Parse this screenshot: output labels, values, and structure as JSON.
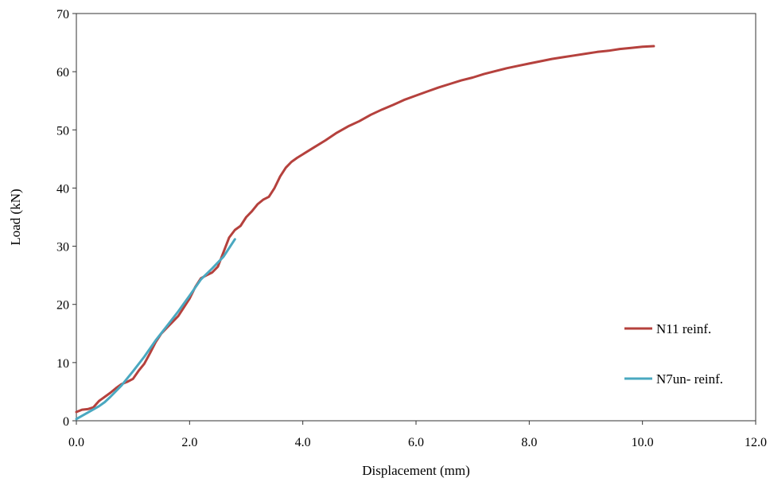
{
  "chart_data": {
    "type": "line",
    "title": "",
    "xlabel": "Displacement (mm)",
    "ylabel": "Load (kN)",
    "xlim": [
      0,
      12
    ],
    "ylim": [
      0,
      70
    ],
    "x_ticks": [
      0,
      2,
      4,
      6,
      8,
      10,
      12
    ],
    "x_tick_labels": [
      "0.0",
      "2.0",
      "4.0",
      "6.0",
      "8.0",
      "10.0",
      "12.0"
    ],
    "y_ticks": [
      0,
      10,
      20,
      30,
      40,
      50,
      60,
      70
    ],
    "y_tick_labels": [
      "0",
      "10",
      "20",
      "30",
      "40",
      "50",
      "60",
      "70"
    ],
    "grid": false,
    "legend_position": "bottom-right",
    "series": [
      {
        "name": "N11 reinf.",
        "color": "#b5413d",
        "points": [
          [
            0.0,
            1.5
          ],
          [
            0.1,
            1.9
          ],
          [
            0.2,
            2.0
          ],
          [
            0.3,
            2.3
          ],
          [
            0.4,
            3.4
          ],
          [
            0.5,
            4.1
          ],
          [
            0.6,
            4.8
          ],
          [
            0.7,
            5.6
          ],
          [
            0.8,
            6.3
          ],
          [
            0.9,
            6.7
          ],
          [
            1.0,
            7.2
          ],
          [
            1.1,
            8.6
          ],
          [
            1.2,
            9.8
          ],
          [
            1.3,
            11.6
          ],
          [
            1.4,
            13.5
          ],
          [
            1.5,
            15.0
          ],
          [
            1.6,
            16.0
          ],
          [
            1.7,
            17.0
          ],
          [
            1.8,
            18.0
          ],
          [
            1.9,
            19.5
          ],
          [
            2.0,
            21.0
          ],
          [
            2.1,
            23.0
          ],
          [
            2.2,
            24.5
          ],
          [
            2.3,
            25.0
          ],
          [
            2.4,
            25.5
          ],
          [
            2.5,
            26.5
          ],
          [
            2.6,
            29.0
          ],
          [
            2.7,
            31.5
          ],
          [
            2.8,
            32.8
          ],
          [
            2.9,
            33.5
          ],
          [
            3.0,
            35.0
          ],
          [
            3.1,
            36.0
          ],
          [
            3.2,
            37.2
          ],
          [
            3.3,
            38.0
          ],
          [
            3.4,
            38.5
          ],
          [
            3.5,
            40.0
          ],
          [
            3.6,
            42.0
          ],
          [
            3.7,
            43.5
          ],
          [
            3.8,
            44.5
          ],
          [
            3.9,
            45.2
          ],
          [
            4.0,
            45.8
          ],
          [
            4.2,
            47.0
          ],
          [
            4.4,
            48.2
          ],
          [
            4.6,
            49.5
          ],
          [
            4.8,
            50.6
          ],
          [
            5.0,
            51.5
          ],
          [
            5.2,
            52.6
          ],
          [
            5.4,
            53.5
          ],
          [
            5.6,
            54.3
          ],
          [
            5.8,
            55.2
          ],
          [
            6.0,
            55.9
          ],
          [
            6.2,
            56.6
          ],
          [
            6.4,
            57.3
          ],
          [
            6.6,
            57.9
          ],
          [
            6.8,
            58.5
          ],
          [
            7.0,
            59.0
          ],
          [
            7.2,
            59.6
          ],
          [
            7.4,
            60.1
          ],
          [
            7.6,
            60.6
          ],
          [
            7.8,
            61.0
          ],
          [
            8.0,
            61.4
          ],
          [
            8.2,
            61.8
          ],
          [
            8.4,
            62.2
          ],
          [
            8.6,
            62.5
          ],
          [
            8.8,
            62.8
          ],
          [
            9.0,
            63.1
          ],
          [
            9.2,
            63.4
          ],
          [
            9.4,
            63.6
          ],
          [
            9.6,
            63.9
          ],
          [
            9.8,
            64.1
          ],
          [
            10.0,
            64.3
          ],
          [
            10.2,
            64.4
          ]
        ]
      },
      {
        "name": "N7un- reinf.",
        "color": "#4aa8c0",
        "points": [
          [
            0.0,
            0.3
          ],
          [
            0.2,
            1.4
          ],
          [
            0.4,
            2.5
          ],
          [
            0.5,
            3.2
          ],
          [
            0.6,
            4.1
          ],
          [
            0.8,
            6.1
          ],
          [
            1.0,
            8.5
          ],
          [
            1.2,
            11.0
          ],
          [
            1.4,
            13.8
          ],
          [
            1.6,
            16.3
          ],
          [
            1.8,
            18.8
          ],
          [
            2.0,
            21.5
          ],
          [
            2.2,
            24.3
          ],
          [
            2.4,
            26.2
          ],
          [
            2.6,
            28.2
          ],
          [
            2.8,
            31.2
          ]
        ]
      }
    ]
  }
}
